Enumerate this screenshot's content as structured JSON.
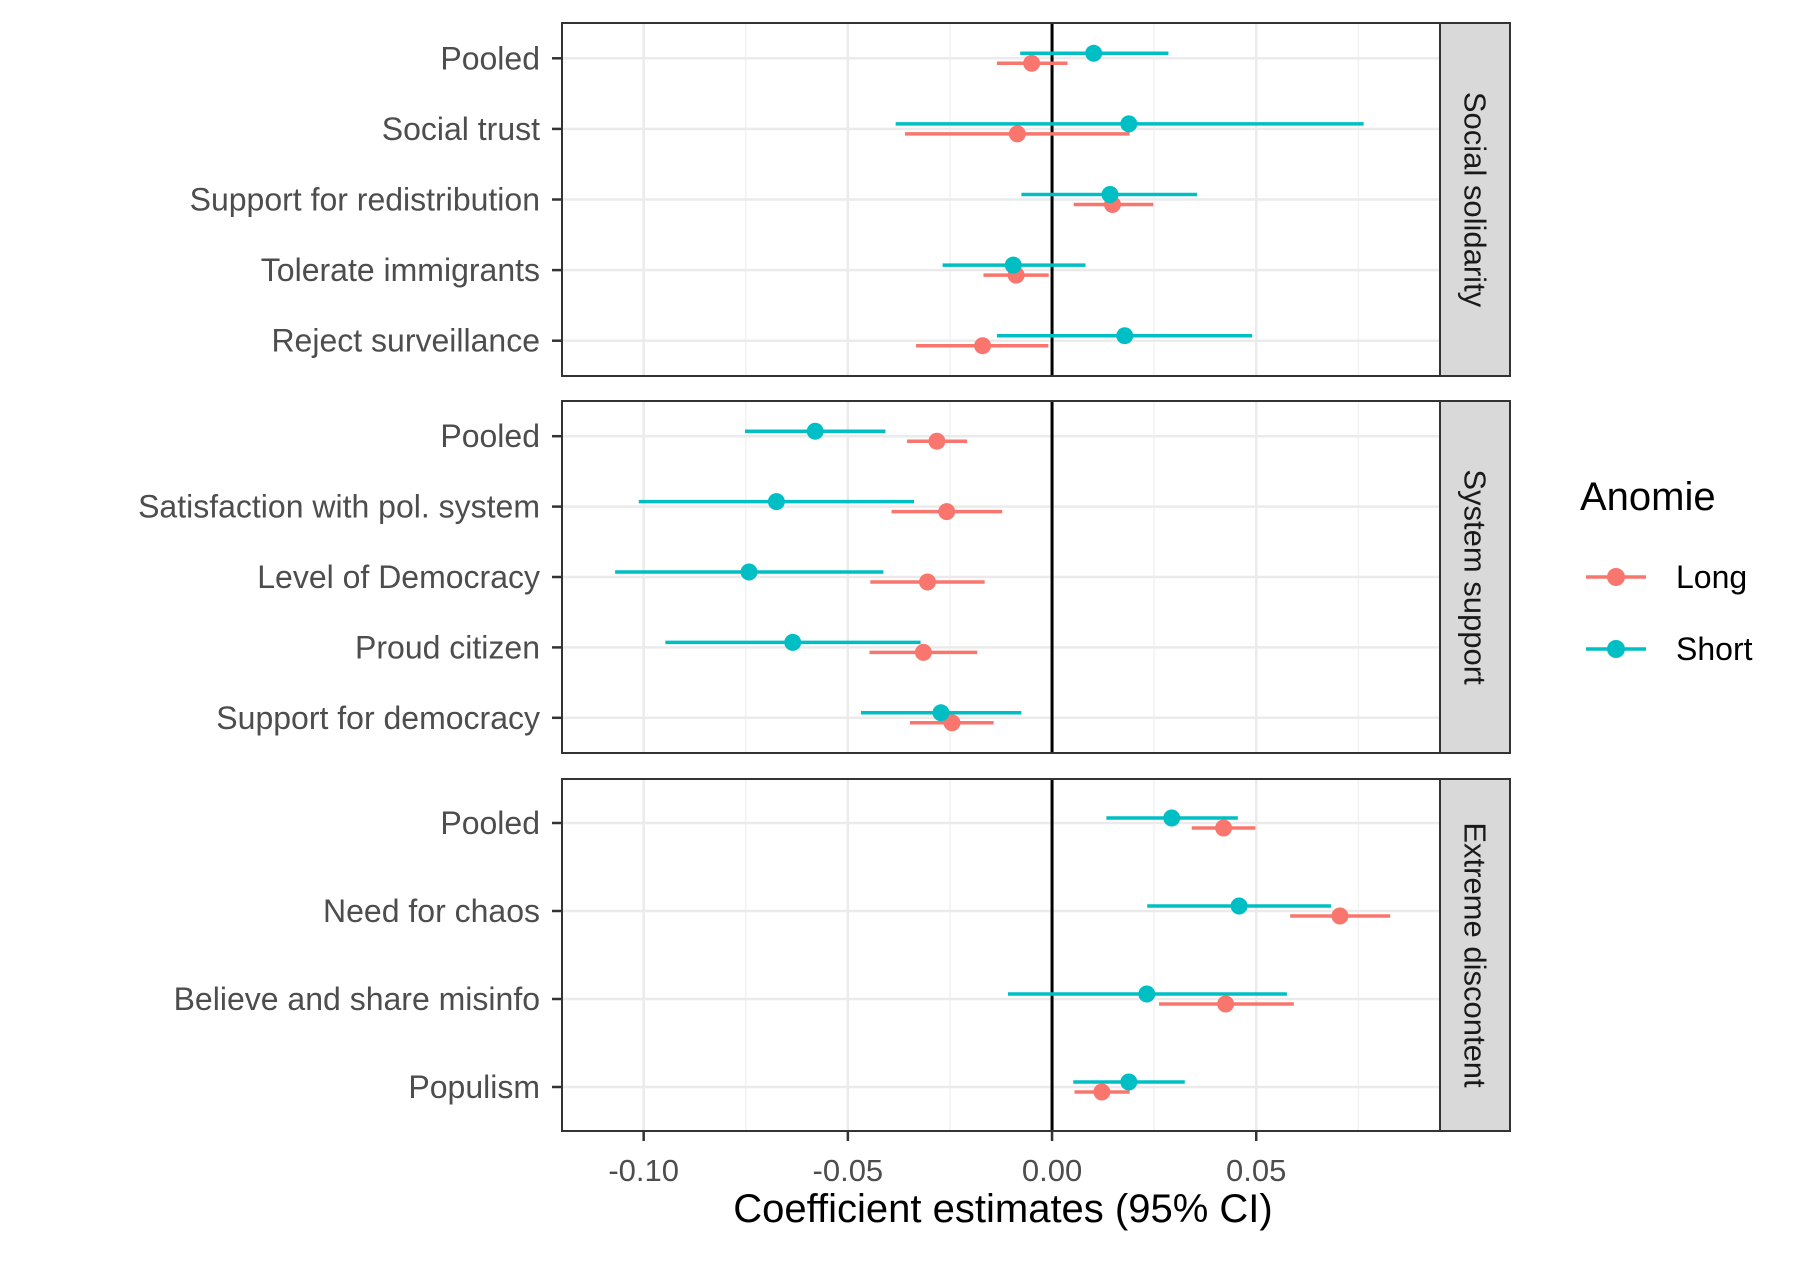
{
  "chart_data": {
    "type": "scatter",
    "subtype": "point-range forest plot, faceted",
    "xlabel": "Coefficient estimates (95% CI)",
    "xlim": [
      -0.12,
      0.095
    ],
    "xticks": [
      -0.1,
      -0.05,
      0.0,
      0.05
    ],
    "xtick_labels": [
      "-0.10",
      "-0.05",
      "0.00",
      "0.05"
    ],
    "grid": true,
    "reference_line_x": 0,
    "legend": {
      "title": "Anomie",
      "placement": "right",
      "entries": [
        {
          "name": "Long",
          "color": "#F8766D"
        },
        {
          "name": "Short",
          "color": "#00BFC4"
        }
      ]
    },
    "facets": [
      {
        "strip": "Social solidarity",
        "categories": [
          "Pooled",
          "Social trust",
          "Support for redistribution",
          "Tolerate immigrants",
          "Reject surveillance"
        ],
        "series": [
          {
            "name": "Long",
            "estimate": [
              -0.005,
              -0.0085,
              0.0148,
              -0.0088,
              -0.017
            ],
            "lower": [
              -0.0135,
              -0.036,
              0.0053,
              -0.0168,
              -0.0333
            ],
            "upper": [
              0.0038,
              0.019,
              0.0248,
              -0.0008,
              -0.0009
            ]
          },
          {
            "name": "Short",
            "estimate": [
              0.0102,
              0.0188,
              0.0142,
              -0.0095,
              0.0178
            ],
            "lower": [
              -0.0078,
              -0.0383,
              -0.0075,
              -0.0268,
              -0.0135
            ],
            "upper": [
              0.0285,
              0.0763,
              0.0355,
              0.0082,
              0.049
            ]
          }
        ]
      },
      {
        "strip": "System support",
        "categories": [
          "Pooled",
          "Satisfaction with pol. system",
          "Level of Democracy",
          "Proud citizen",
          "Support for democracy"
        ],
        "series": [
          {
            "name": "Long",
            "estimate": [
              -0.0282,
              -0.0258,
              -0.0305,
              -0.0315,
              -0.0245
            ],
            "lower": [
              -0.0355,
              -0.0393,
              -0.0445,
              -0.0447,
              -0.0348
            ],
            "upper": [
              -0.0208,
              -0.0122,
              -0.0165,
              -0.0183,
              -0.0143
            ]
          },
          {
            "name": "Short",
            "estimate": [
              -0.058,
              -0.0675,
              -0.0742,
              -0.0635,
              -0.0272
            ],
            "lower": [
              -0.0752,
              -0.1012,
              -0.107,
              -0.0947,
              -0.0468
            ],
            "upper": [
              -0.0408,
              -0.0338,
              -0.0413,
              -0.0322,
              -0.0075
            ]
          }
        ]
      },
      {
        "strip": "Extreme discontent",
        "categories": [
          "Pooled",
          "Need for chaos",
          "Believe and share misinfo",
          "Populism"
        ],
        "series": [
          {
            "name": "Long",
            "estimate": [
              0.042,
              0.0705,
              0.0425,
              0.0122
            ],
            "lower": [
              0.0342,
              0.0583,
              0.0262,
              0.0055
            ],
            "upper": [
              0.0498,
              0.0828,
              0.0592,
              0.019
            ]
          },
          {
            "name": "Short",
            "estimate": [
              0.0293,
              0.0458,
              0.0232,
              0.0188
            ],
            "lower": [
              0.0133,
              0.0233,
              -0.0108,
              0.0052
            ],
            "upper": [
              0.0455,
              0.0683,
              0.0575,
              0.0325
            ]
          }
        ]
      }
    ]
  }
}
